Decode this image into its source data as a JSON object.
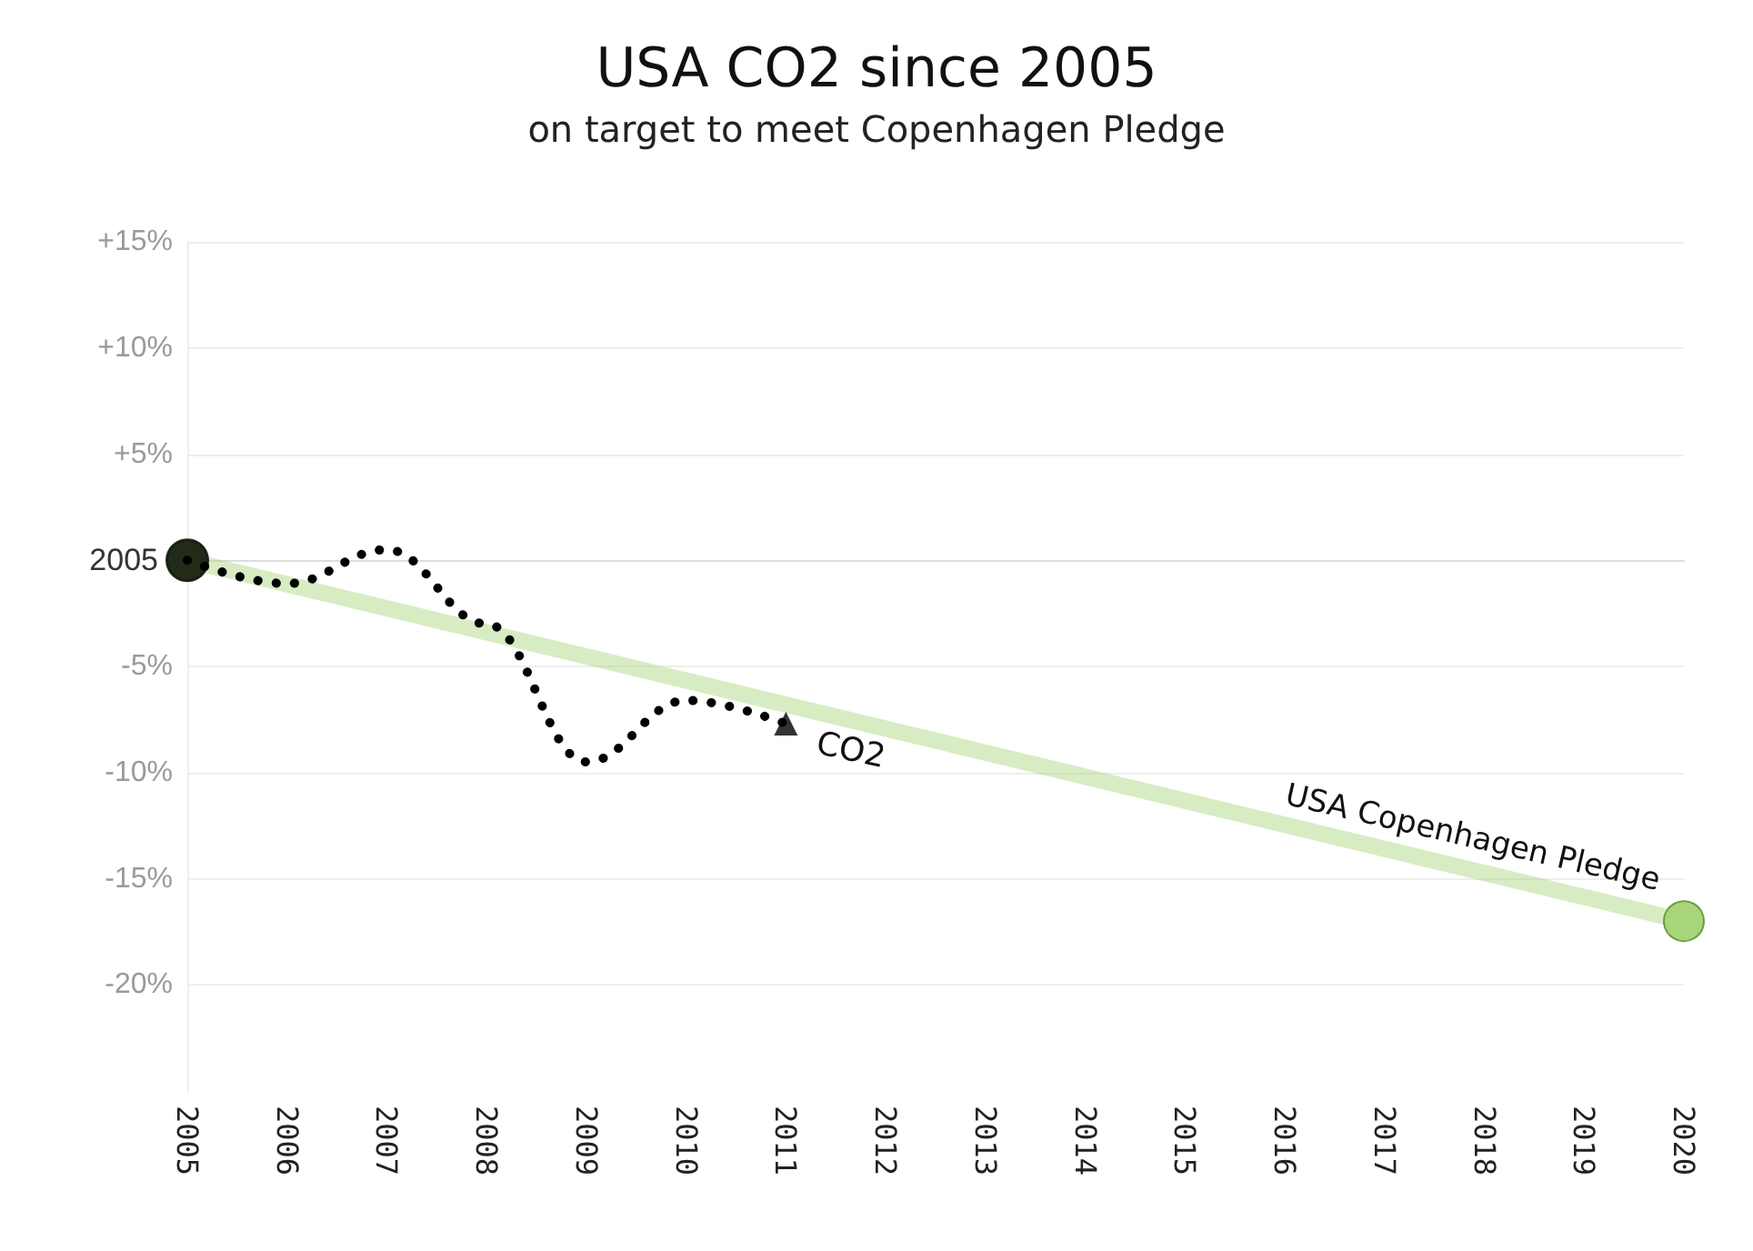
{
  "chart_data": {
    "type": "line",
    "title": "USA CO2 since 2005",
    "subtitle": "on target to meet Copenhagen Pledge",
    "x": [
      2005,
      2006,
      2007,
      2008,
      2009,
      2010,
      2011
    ],
    "xlim": [
      2005,
      2020
    ],
    "xticks": [
      2005,
      2006,
      2007,
      2008,
      2009,
      2010,
      2011,
      2012,
      2013,
      2014,
      2015,
      2016,
      2017,
      2018,
      2019,
      2020
    ],
    "series": [
      {
        "name": "CO2",
        "color": "#000000",
        "line_style": "dotted",
        "marker": "none",
        "values": [
          0,
          -1.1,
          0.5,
          -3.0,
          -9.5,
          -6.6,
          -7.7
        ]
      },
      {
        "name": "USA Copenhagen Pledge",
        "color": "#a8d47a",
        "line_style": "solid",
        "marker": "circle",
        "x": [
          2005,
          2020
        ],
        "values": [
          0,
          -17
        ]
      },
      {
        "type": "scatter",
        "color": "#000000",
        "marker": "circle",
        "x": [
          2005
        ],
        "values": [
          0
        ]
      },
      {
        "type": "scatter",
        "color": "#000000",
        "marker": "triangle",
        "x": [
          2011
        ],
        "values": [
          -7.7
        ]
      }
    ],
    "ylim": [
      -25,
      15
    ],
    "yticks": [
      {
        "value": -20,
        "label": "-20%"
      },
      {
        "value": -15,
        "label": "-15%"
      },
      {
        "value": -10,
        "label": "-10%"
      },
      {
        "value": -5,
        "label": "-5%"
      },
      {
        "value": 0,
        "label": null
      },
      {
        "value": 5,
        "label": "+5%"
      },
      {
        "value": 10,
        "label": "+10%"
      },
      {
        "value": 15,
        "label": "+15%"
      }
    ],
    "annotations": [
      {
        "text": "2005",
        "x": 2005,
        "y": 0
      }
    ],
    "grid": "y",
    "legend": false
  }
}
